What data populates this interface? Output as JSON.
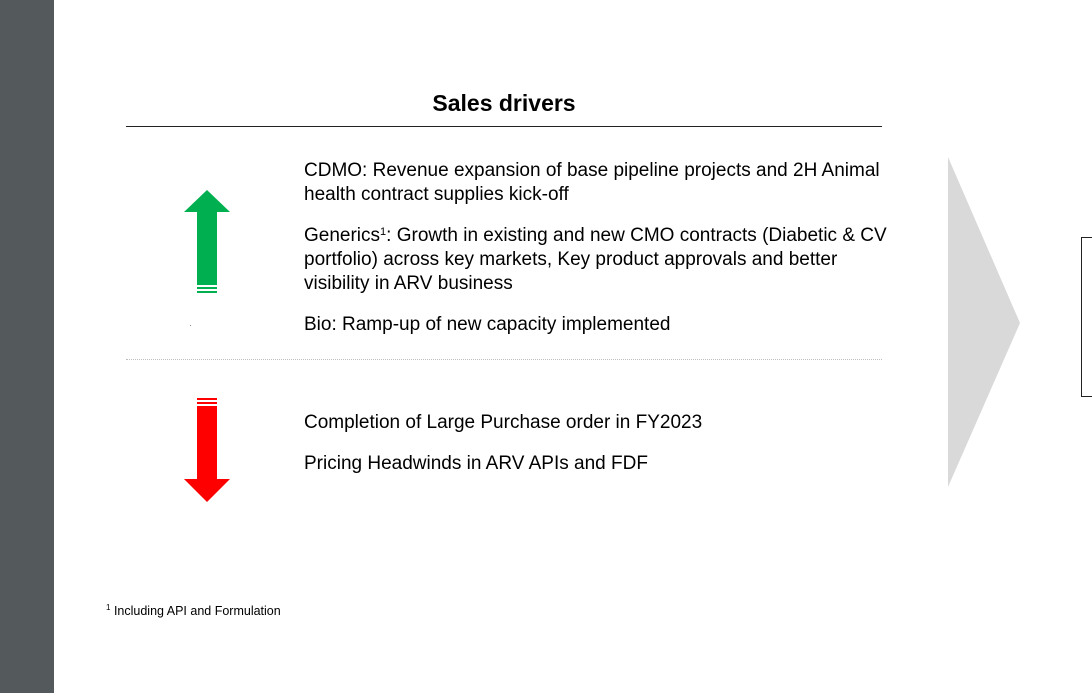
{
  "slide": {
    "title": "Sales drivers",
    "positive_drivers": [
      "CDMO: Revenue expansion of base pipeline projects and  2H Animal health contract supplies kick-off",
      {
        "prefix": "Generics",
        "superscript": "1",
        "text": ": Growth in existing and new CMO contracts (Diabetic & CV portfolio) across key markets, Key product approvals and better visibility in ARV business"
      },
      "Bio: Ramp-up of new capacity implemented"
    ],
    "negative_drivers": [
      "Completion of Large Purchase order in FY2023",
      "Pricing Headwinds in ARV APIs and FDF"
    ],
    "footnote": {
      "marker": "1",
      "text": "Including API and Formulation"
    }
  },
  "icons": {
    "up": "up-arrow-icon",
    "down": "down-arrow-icon",
    "next": "chevron-right-icon"
  },
  "colors": {
    "positive": "#00b050",
    "negative": "#ff0000",
    "chevron": "#d9d9d9",
    "viewer_background": "#54595b"
  }
}
